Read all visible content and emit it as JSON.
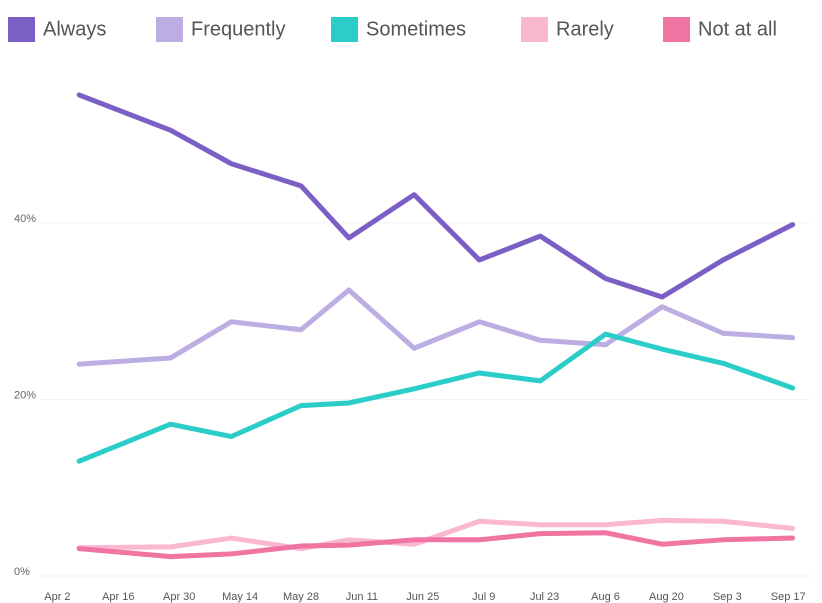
{
  "chart_data": {
    "type": "line",
    "xlim": [
      -4,
      173
    ],
    "xticks": [
      {
        "value": 0,
        "label": "Apr 2"
      },
      {
        "value": 14,
        "label": "Apr 16"
      },
      {
        "value": 28,
        "label": "Apr 30"
      },
      {
        "value": 42,
        "label": "May 14"
      },
      {
        "value": 56,
        "label": "May 28"
      },
      {
        "value": 70,
        "label": "Jun 11"
      },
      {
        "value": 84,
        "label": "Jun 25"
      },
      {
        "value": 98,
        "label": "Jul 9"
      },
      {
        "value": 112,
        "label": "Jul 23"
      },
      {
        "value": 126,
        "label": "Aug 6"
      },
      {
        "value": 140,
        "label": "Aug 20"
      },
      {
        "value": 154,
        "label": "Sep 3"
      },
      {
        "value": 168,
        "label": "Sep 17"
      }
    ],
    "x": [
      5,
      26,
      40,
      56,
      67,
      82,
      97,
      111,
      126,
      139,
      153,
      169
    ],
    "ylim": [
      0,
      58
    ],
    "yticks": [
      {
        "value": 0,
        "label": "0%"
      },
      {
        "value": 20,
        "label": "20%"
      },
      {
        "value": 40,
        "label": "40%"
      }
    ],
    "grid": true,
    "series": [
      {
        "name": "Always",
        "color": "#7b5fc4",
        "values": [
          54.5,
          50.5,
          46.7,
          44.2,
          38.3,
          43.2,
          35.8,
          38.5,
          33.7,
          31.6,
          35.8,
          39.8
        ]
      },
      {
        "name": "Frequently",
        "color": "#bcaee3",
        "values": [
          24.0,
          24.7,
          28.8,
          27.9,
          32.4,
          25.8,
          28.8,
          26.7,
          26.2,
          30.5,
          27.5,
          27.0
        ]
      },
      {
        "name": "Sometimes",
        "color": "#2bcdc8",
        "values": [
          13.0,
          17.2,
          15.8,
          19.3,
          19.6,
          21.2,
          23.0,
          22.1,
          27.4,
          25.7,
          24.1,
          21.3
        ]
      },
      {
        "name": "Rarely",
        "color": "#f9b8d0",
        "values": [
          3.2,
          3.3,
          4.3,
          3.1,
          4.1,
          3.6,
          6.2,
          5.8,
          5.8,
          6.3,
          6.2,
          5.4
        ]
      },
      {
        "name": "Not at all",
        "color": "#f075a2",
        "values": [
          3.1,
          2.2,
          2.5,
          3.4,
          3.5,
          4.1,
          4.1,
          4.8,
          4.9,
          3.6,
          4.1,
          4.3
        ]
      }
    ]
  }
}
